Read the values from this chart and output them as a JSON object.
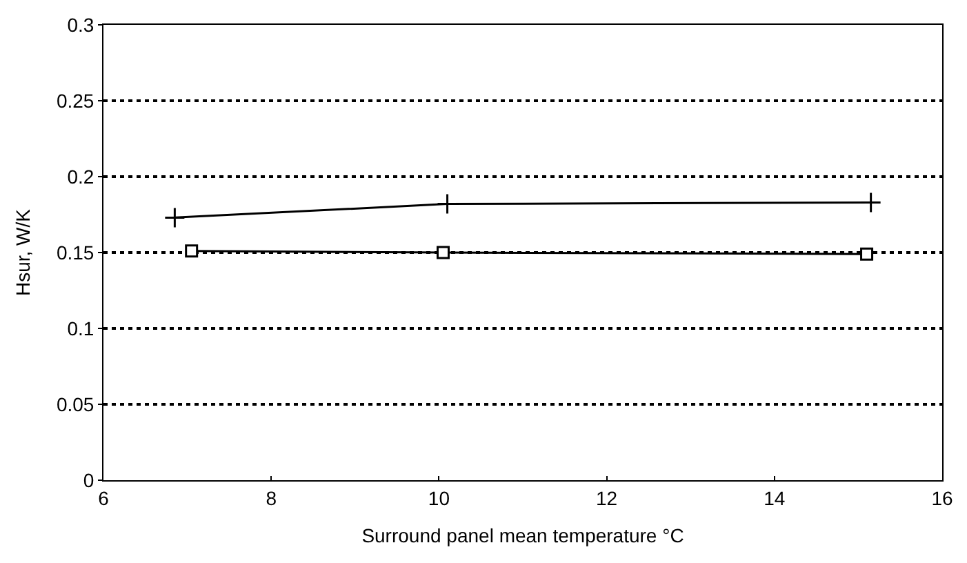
{
  "chart_data": {
    "type": "line",
    "xlabel": "Surround panel mean temperature °C",
    "ylabel": "Hsur, W/K",
    "series": [
      {
        "color": "#000000",
        "marker": "cross",
        "x": [
          6.85,
          10.1,
          15.15
        ],
        "values": [
          0.173,
          0.182,
          0.183
        ]
      },
      {
        "color": "#000000",
        "marker": "square",
        "x": [
          7.05,
          10.05,
          15.1
        ],
        "values": [
          0.151,
          0.15,
          0.149
        ]
      }
    ],
    "xlim": [
      6,
      16
    ],
    "xticks": [
      6,
      8,
      10,
      12,
      14,
      16
    ],
    "ylim": [
      0,
      0.3
    ],
    "yticks": [
      0,
      0.05,
      0.1,
      0.15,
      0.2,
      0.25,
      0.3
    ],
    "grid": "y"
  }
}
